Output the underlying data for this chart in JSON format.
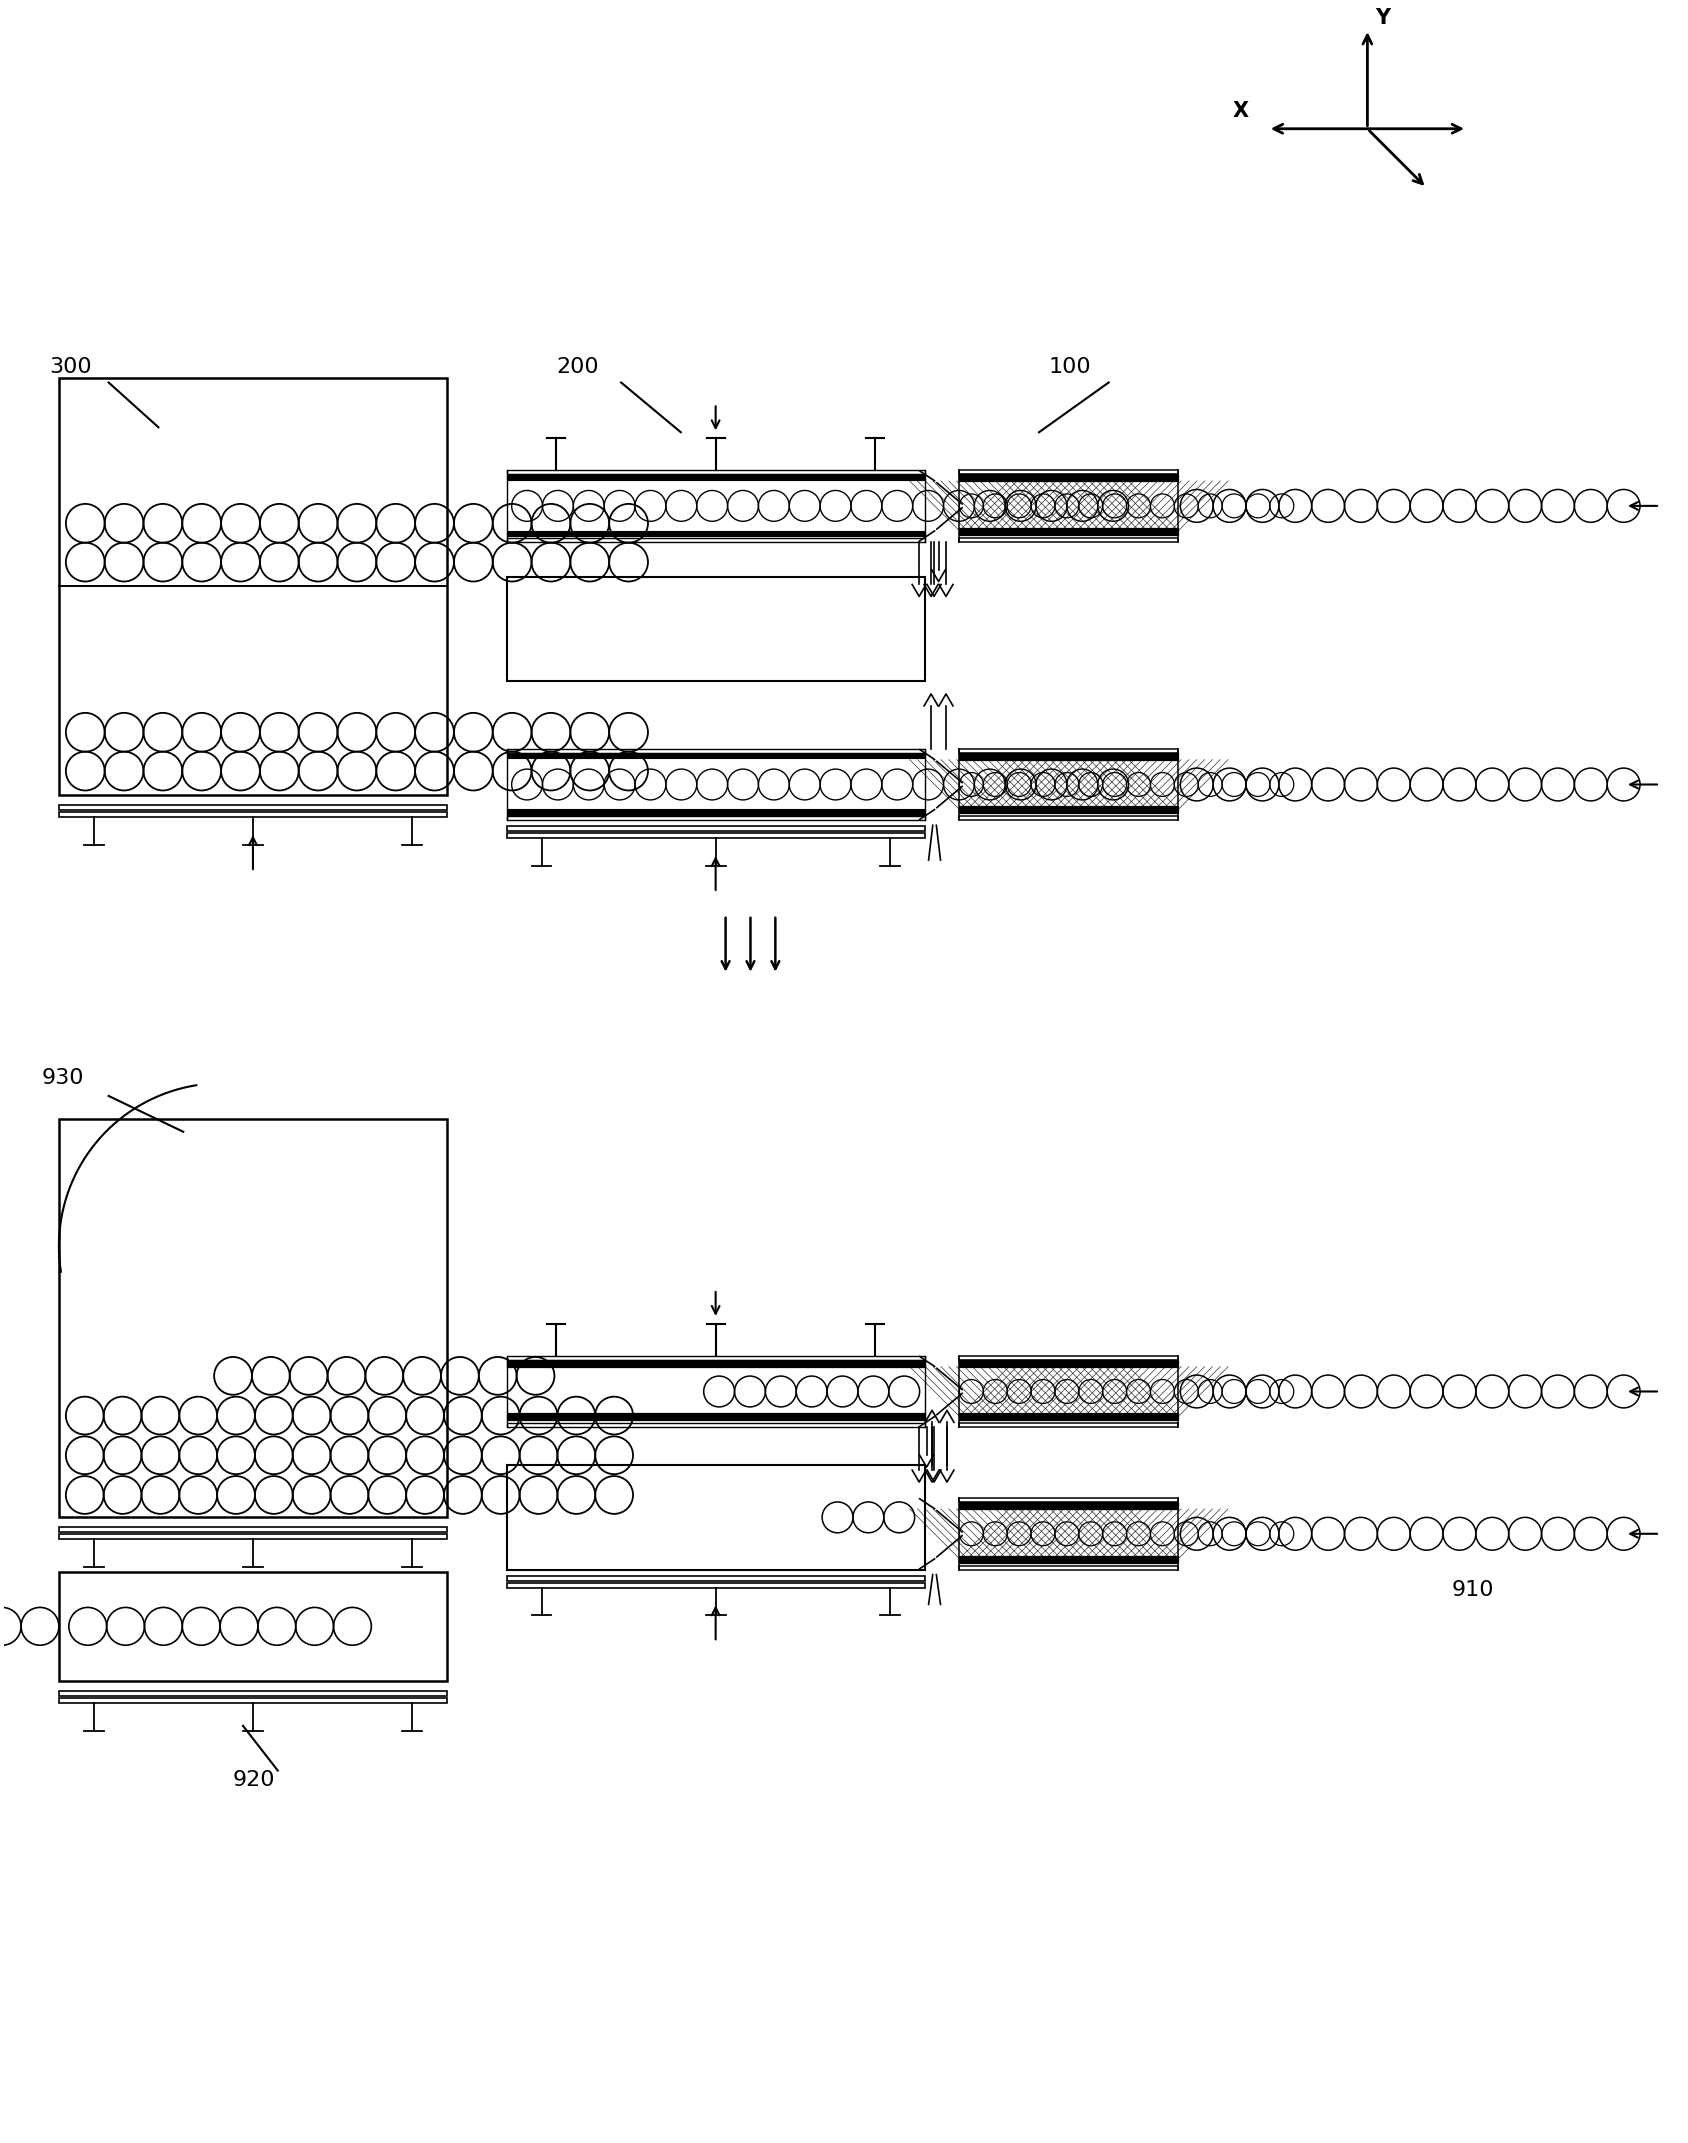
{
  "bg_color": "#ffffff",
  "lc": "#000000",
  "fig_w": 16.88,
  "fig_h": 21.43,
  "lbl_300": "300",
  "lbl_200": "200",
  "lbl_100": "100",
  "lbl_930": "930",
  "lbl_920": "920",
  "lbl_910": "910",
  "lbl_X": "X",
  "lbl_Y": "Y"
}
